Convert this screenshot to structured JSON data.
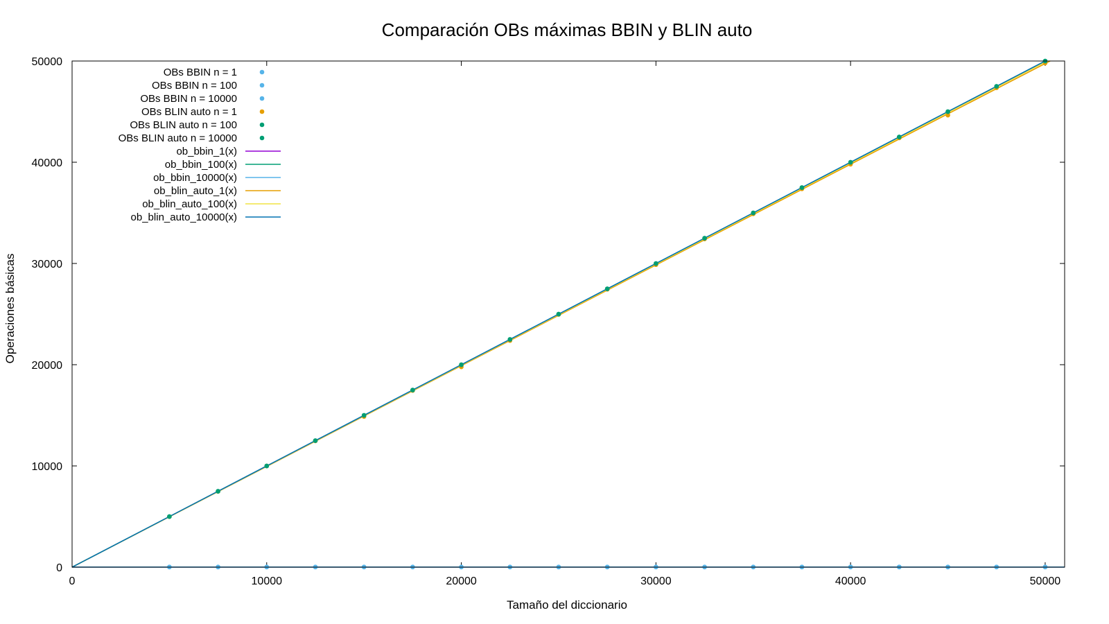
{
  "chart_data": {
    "type": "line",
    "title": "Comparación OBs máximas BBIN y BLIN auto",
    "xlabel": "Tamaño del diccionario",
    "ylabel": "Operaciones básicas",
    "xlim": [
      0,
      51000
    ],
    "ylim": [
      0,
      50000
    ],
    "xticks": [
      0,
      10000,
      20000,
      30000,
      40000,
      50000
    ],
    "yticks": [
      0,
      10000,
      20000,
      30000,
      40000,
      50000
    ],
    "grid": false,
    "legend_position": "top-left",
    "x": [
      5000,
      7500,
      10000,
      12500,
      15000,
      17500,
      20000,
      22500,
      25000,
      27500,
      30000,
      32500,
      35000,
      37500,
      40000,
      42500,
      45000,
      47500,
      50000
    ],
    "series": [
      {
        "name": "OBs BBIN n = 1",
        "kind": "points",
        "color": "#56b4e9",
        "values": [
          13,
          13,
          14,
          14,
          14,
          14,
          15,
          15,
          15,
          15,
          15,
          15,
          15,
          15,
          16,
          16,
          16,
          16,
          16
        ]
      },
      {
        "name": "OBs BBIN n = 100",
        "kind": "points",
        "color": "#56b4e9",
        "values": [
          13,
          13,
          14,
          14,
          14,
          14,
          15,
          15,
          15,
          15,
          15,
          15,
          15,
          15,
          16,
          16,
          16,
          16,
          16
        ]
      },
      {
        "name": "OBs BBIN n = 10000",
        "kind": "points",
        "color": "#56b4e9",
        "values": [
          13,
          13,
          14,
          14,
          14,
          14,
          15,
          15,
          15,
          15,
          15,
          15,
          15,
          15,
          16,
          16,
          16,
          16,
          16
        ]
      },
      {
        "name": "OBs BLIN auto n = 1",
        "kind": "points",
        "color": "#e69f00",
        "values": [
          4990,
          7480,
          9995,
          12470,
          14880,
          17450,
          19780,
          22380,
          24960,
          27450,
          29880,
          32420,
          34900,
          37370,
          39800,
          42400,
          44650,
          47350,
          49800
        ]
      },
      {
        "name": "OBs BLIN auto n = 100",
        "kind": "points",
        "color": "#009e73",
        "values": [
          4999,
          7499,
          9999,
          12499,
          14999,
          17499,
          19999,
          22499,
          24999,
          27499,
          29999,
          32499,
          34999,
          37499,
          39999,
          42499,
          44999,
          47499,
          49999
        ]
      },
      {
        "name": "OBs BLIN auto n = 10000",
        "kind": "points",
        "color": "#009e73",
        "values": [
          5000,
          7500,
          10000,
          12500,
          15000,
          17500,
          20000,
          22500,
          25000,
          27500,
          30000,
          32500,
          35000,
          37500,
          40000,
          42500,
          45000,
          47500,
          50000
        ]
      },
      {
        "name": "ob_bbin_1(x)",
        "kind": "fit",
        "color": "#9400d3",
        "slope": 0,
        "intercept": 15
      },
      {
        "name": "ob_bbin_100(x)",
        "kind": "fit",
        "color": "#009e73",
        "slope": 0,
        "intercept": 15
      },
      {
        "name": "ob_bbin_10000(x)",
        "kind": "fit",
        "color": "#56b4e9",
        "slope": 0,
        "intercept": 15
      },
      {
        "name": "ob_blin_auto_1(x)",
        "kind": "fit",
        "color": "#e69f00",
        "slope": 0.995,
        "intercept": 0
      },
      {
        "name": "ob_blin_auto_100(x)",
        "kind": "fit",
        "color": "#f0e442",
        "slope": 0.998,
        "intercept": 0
      },
      {
        "name": "ob_blin_auto_10000(x)",
        "kind": "fit",
        "color": "#0072b2",
        "slope": 1.0,
        "intercept": 0
      }
    ]
  }
}
